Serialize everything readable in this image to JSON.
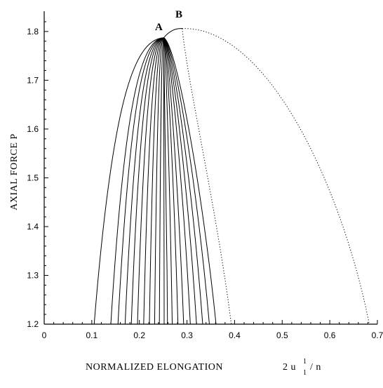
{
  "chart_data": {
    "type": "line",
    "title": "",
    "xlabel": "NORMALIZED ELONGATION",
    "xlabel_math": {
      "base": "2 u",
      "sup": "1",
      "sub": "1",
      "tail": "/ n"
    },
    "ylabel": "AXIAL FORCE P",
    "xlim": [
      0,
      0.7
    ],
    "ylim": [
      1.2,
      1.83
    ],
    "xticks": [
      "0",
      "0.1",
      "0.2",
      "0.3",
      "0.4",
      "0.5",
      "0.6",
      "0.7"
    ],
    "yticks": [
      "1.2",
      "1.3",
      "1.4",
      "1.5",
      "1.6",
      "1.7",
      "1.8"
    ],
    "grid": false,
    "legend": "none",
    "annotations": [
      {
        "text": "A",
        "x": 0.251,
        "y": 1.787
      },
      {
        "text": "B",
        "x": 0.29,
        "y": 1.806
      }
    ],
    "envelope": {
      "style": "dotted",
      "peak": {
        "x": 0.29,
        "y": 1.806
      },
      "left_end": {
        "x": 0.393,
        "y": 1.2
      },
      "right_end": {
        "x": 0.683,
        "y": 1.2
      }
    },
    "branch_apex": {
      "x": 0.251,
      "y": 1.787
    },
    "branches": [
      {
        "left_x": 0.105,
        "right_x": 0.361
      },
      {
        "left_x": 0.14,
        "right_x": 0.347
      },
      {
        "left_x": 0.155,
        "right_x": 0.333
      },
      {
        "left_x": 0.17,
        "right_x": 0.32
      },
      {
        "left_x": 0.183,
        "right_x": 0.307
      },
      {
        "left_x": 0.196,
        "right_x": 0.293
      },
      {
        "left_x": 0.209,
        "right_x": 0.281
      },
      {
        "left_x": 0.221,
        "right_x": 0.269
      },
      {
        "left_x": 0.232,
        "right_x": 0.259
      },
      {
        "left_x": 0.242,
        "right_x": 0.252
      }
    ],
    "peak_curve_to_B": {
      "from": {
        "x": 0.251,
        "y": 1.787
      },
      "to": {
        "x": 0.29,
        "y": 1.806
      }
    }
  }
}
